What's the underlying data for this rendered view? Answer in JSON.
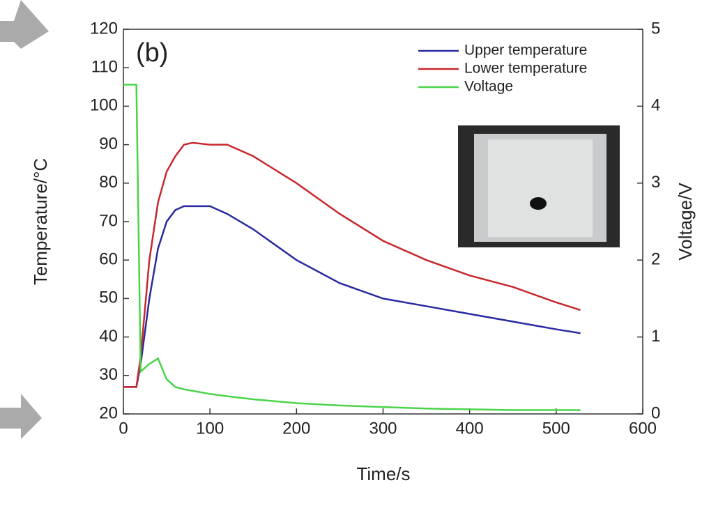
{
  "chart_data": {
    "type": "line",
    "annotation": "(b)",
    "x_label": "Time/s",
    "y_label": "Temperature/°C",
    "y2_label": "Voltage/V",
    "x": [
      0,
      15,
      20,
      30,
      40,
      50,
      60,
      70,
      80,
      100,
      120,
      150,
      200,
      250,
      300,
      350,
      400,
      450,
      500,
      528
    ],
    "series": [
      {
        "name": "Upper temperature",
        "color": "#2a2aa0",
        "values": [
          27,
          27,
          33,
          50,
          63,
          70,
          73,
          74,
          74,
          74,
          72,
          68,
          60,
          54,
          50,
          48,
          46,
          44,
          42,
          41
        ]
      },
      {
        "name": "Lower temperature",
        "color": "#c8282d",
        "values": [
          27,
          27,
          35,
          60,
          75,
          83,
          87,
          90,
          90.5,
          90,
          90,
          87,
          80,
          72,
          65,
          60,
          56,
          53,
          49,
          47
        ]
      },
      {
        "name": "Voltage",
        "color": "#4ad44a",
        "axis": "y2",
        "values": [
          4.28,
          4.28,
          0.55,
          0.65,
          0.72,
          0.45,
          0.35,
          0.32,
          0.3,
          0.26,
          0.23,
          0.19,
          0.14,
          0.11,
          0.09,
          0.07,
          0.06,
          0.05,
          0.05,
          0.05
        ]
      }
    ],
    "xlim": [
      0,
      600
    ],
    "xticks": [
      0,
      100,
      200,
      300,
      400,
      500,
      600
    ],
    "ylim": [
      20,
      120
    ],
    "yticks": [
      20,
      30,
      40,
      50,
      60,
      70,
      80,
      90,
      100,
      110,
      120
    ],
    "y2lim": [
      0,
      5
    ],
    "y2ticks": [
      0,
      1,
      2,
      3,
      4,
      5
    ],
    "legend": "upper right"
  }
}
